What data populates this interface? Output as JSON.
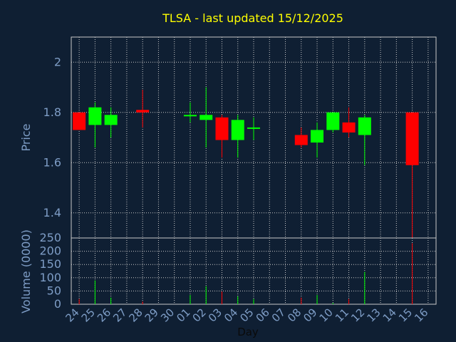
{
  "chart_data": [
    {
      "type": "candlestick",
      "title": "TLSA - last updated 15/12/2025",
      "ylabel": "Price",
      "ylim": [
        1.3,
        2.1
      ],
      "yticks": [
        "1.4",
        "1.6",
        "1.8",
        "2"
      ],
      "grid": true,
      "candles": [
        {
          "day": "24",
          "open": 1.8,
          "high": 1.8,
          "low": 1.73,
          "close": 1.73
        },
        {
          "day": "25",
          "open": 1.75,
          "high": 1.84,
          "low": 1.66,
          "close": 1.82
        },
        {
          "day": "26",
          "open": 1.75,
          "high": 1.82,
          "low": 1.7,
          "close": 1.79
        },
        {
          "day": "28",
          "open": 1.81,
          "high": 1.89,
          "low": 1.74,
          "close": 1.8
        },
        {
          "day": "01",
          "open": 1.79,
          "high": 1.84,
          "low": 1.76,
          "close": 1.79
        },
        {
          "day": "02",
          "open": 1.77,
          "high": 1.9,
          "low": 1.66,
          "close": 1.79
        },
        {
          "day": "03",
          "open": 1.78,
          "high": 1.79,
          "low": 1.62,
          "close": 1.69
        },
        {
          "day": "04",
          "open": 1.69,
          "high": 1.79,
          "low": 1.62,
          "close": 1.77
        },
        {
          "day": "05",
          "open": 1.74,
          "high": 1.78,
          "low": 1.69,
          "close": 1.74
        },
        {
          "day": "08",
          "open": 1.71,
          "high": 1.74,
          "low": 1.66,
          "close": 1.67
        },
        {
          "day": "09",
          "open": 1.68,
          "high": 1.76,
          "low": 1.62,
          "close": 1.73
        },
        {
          "day": "10",
          "open": 1.73,
          "high": 1.8,
          "low": 1.72,
          "close": 1.8
        },
        {
          "day": "11",
          "open": 1.76,
          "high": 1.82,
          "low": 1.7,
          "close": 1.72
        },
        {
          "day": "12",
          "open": 1.71,
          "high": 1.79,
          "low": 1.59,
          "close": 1.78
        },
        {
          "day": "15",
          "open": 1.8,
          "high": 1.8,
          "low": 1.3,
          "close": 1.59
        }
      ]
    },
    {
      "type": "bar",
      "xlabel": "Day",
      "ylabel": "Volume (0000)",
      "ylim": [
        0,
        250
      ],
      "yticks": [
        "0",
        "50",
        "100",
        "150",
        "200",
        "250"
      ],
      "categories": [
        "24",
        "25",
        "26",
        "27",
        "28",
        "29",
        "30",
        "01",
        "02",
        "03",
        "04",
        "05",
        "06",
        "07",
        "08",
        "09",
        "10",
        "11",
        "12",
        "13",
        "14",
        "15",
        "16"
      ],
      "values": [
        {
          "day": "24",
          "volume": 20
        },
        {
          "day": "25",
          "volume": 90
        },
        {
          "day": "26",
          "volume": 25
        },
        {
          "day": "28",
          "volume": 10
        },
        {
          "day": "01",
          "volume": 35
        },
        {
          "day": "02",
          "volume": 68
        },
        {
          "day": "03",
          "volume": 48
        },
        {
          "day": "04",
          "volume": 30
        },
        {
          "day": "05",
          "volume": 20
        },
        {
          "day": "08",
          "volume": 25
        },
        {
          "day": "09",
          "volume": 35
        },
        {
          "day": "10",
          "volume": 5
        },
        {
          "day": "11",
          "volume": 20
        },
        {
          "day": "12",
          "volume": 122
        },
        {
          "day": "15",
          "volume": 230
        }
      ]
    }
  ],
  "colors": {
    "background": "#0f1f33",
    "title": "#ffff00",
    "axis_text": "#7e9dc6",
    "grid": "#c8c8c8",
    "up": "#00ff00",
    "down": "#ff0000"
  }
}
